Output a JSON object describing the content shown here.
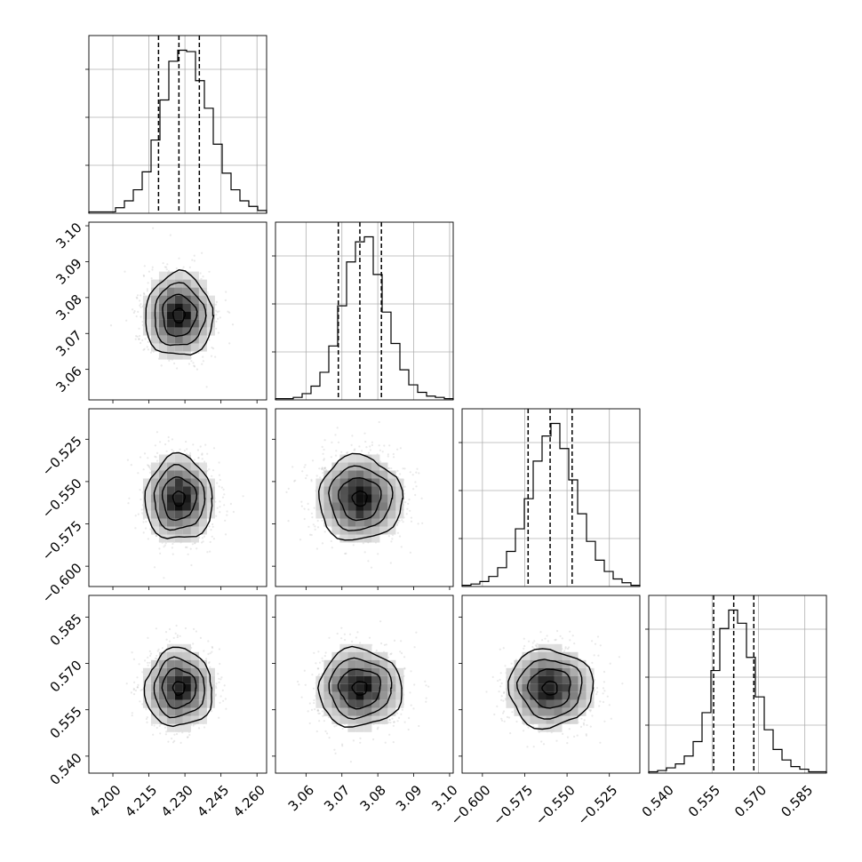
{
  "chart_data": {
    "type": "corner",
    "grid": true,
    "title": "",
    "parameters": [
      {
        "range": [
          4.19,
          4.264
        ],
        "ticks": [
          4.2,
          4.215,
          4.23,
          4.245,
          4.26
        ],
        "tick_labels": [
          "4.200",
          "4.215",
          "4.230",
          "4.245",
          "4.260"
        ],
        "label": "",
        "quantiles": [
          4.219,
          4.2275,
          4.236
        ],
        "mean": 4.2275,
        "std": 0.007
      },
      {
        "range": [
          3.0515,
          3.101
        ],
        "ticks": [
          3.06,
          3.07,
          3.08,
          3.09,
          3.1
        ],
        "tick_labels": [
          "3.06",
          "3.07",
          "3.08",
          "3.09",
          "3.10"
        ],
        "label": "",
        "quantiles": [
          3.069,
          3.075,
          3.081
        ],
        "mean": 3.075,
        "std": 0.0058
      },
      {
        "range": [
          -0.612,
          -0.507
        ],
        "ticks": [
          -0.6,
          -0.575,
          -0.55,
          -0.525
        ],
        "tick_labels": [
          "−0.600",
          "−0.575",
          "−0.550",
          "−0.525"
        ],
        "label": "",
        "quantiles": [
          -0.573,
          -0.56,
          -0.547
        ],
        "mean": -0.56,
        "std": 0.0125
      },
      {
        "range": [
          0.5345,
          0.592
        ],
        "ticks": [
          0.54,
          0.555,
          0.57,
          0.585
        ],
        "tick_labels": [
          "0.540",
          "0.555",
          "0.570",
          "0.585"
        ],
        "label": "",
        "quantiles": [
          0.5555,
          0.562,
          0.5685
        ],
        "mean": 0.562,
        "std": 0.0063
      }
    ],
    "histograms": [
      [
        1,
        1,
        1,
        4,
        9,
        17,
        30,
        53,
        82,
        110,
        118,
        117,
        96,
        76,
        50,
        29,
        17,
        9,
        5,
        2
      ],
      [
        1,
        1,
        2,
        5,
        11,
        22,
        43,
        75,
        110,
        126,
        130,
        100,
        70,
        45,
        24,
        12,
        6,
        3,
        2,
        1
      ],
      [
        1,
        2,
        4,
        8,
        15,
        28,
        46,
        70,
        100,
        120,
        130,
        110,
        85,
        58,
        36,
        21,
        12,
        6,
        3,
        1
      ],
      [
        1,
        2,
        4,
        7,
        13,
        24,
        46,
        78,
        110,
        124,
        114,
        88,
        58,
        33,
        18,
        10,
        5,
        3,
        1,
        1
      ]
    ]
  }
}
